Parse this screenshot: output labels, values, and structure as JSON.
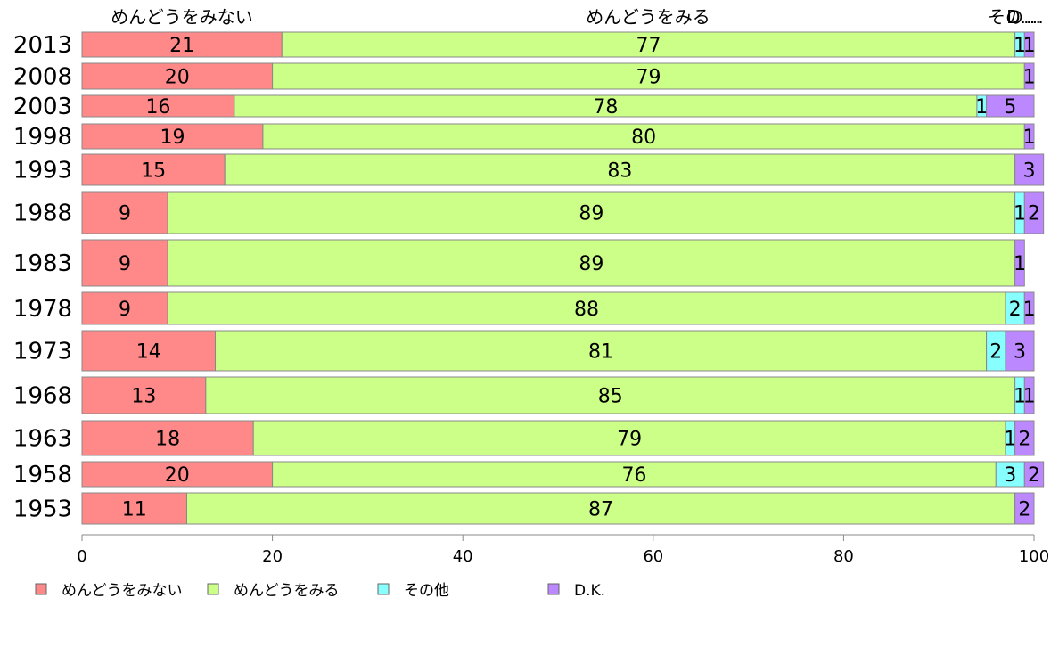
{
  "chart_data": {
    "type": "bar",
    "orientation": "horizontal",
    "stacked": true,
    "categories": [
      "2013",
      "2008",
      "2003",
      "1998",
      "1993",
      "1988",
      "1983",
      "1978",
      "1973",
      "1968",
      "1963",
      "1958",
      "1953"
    ],
    "series": [
      {
        "name": "めんどうをみない",
        "color": "#ff8888",
        "values": [
          21,
          20,
          16,
          19,
          15,
          9,
          9,
          9,
          14,
          13,
          18,
          20,
          11
        ]
      },
      {
        "name": "めんどうをみる",
        "color": "#ccff88",
        "values": [
          77,
          79,
          78,
          80,
          83,
          89,
          89,
          88,
          81,
          85,
          79,
          76,
          87
        ]
      },
      {
        "name": "その他",
        "color": "#88ffff",
        "values": [
          1,
          0,
          1,
          0,
          0,
          1,
          0,
          2,
          2,
          1,
          1,
          3,
          0
        ]
      },
      {
        "name": "D.K.",
        "color": "#bb88ff",
        "values": [
          1,
          1,
          5,
          1,
          3,
          2,
          1,
          1,
          3,
          1,
          2,
          2,
          2
        ]
      }
    ],
    "top_labels": [
      "めんどうをみない",
      "めんどうをみる",
      "その他",
      "D.K."
    ],
    "xlim": [
      0,
      100
    ],
    "xticks": [
      "0",
      "20",
      "40",
      "60",
      "80",
      "100"
    ],
    "legend": {
      "placement": "bottom-left",
      "entries": [
        "めんどうをみない",
        "めんどうをみる",
        "その他",
        "D.K."
      ]
    },
    "grid": false
  }
}
